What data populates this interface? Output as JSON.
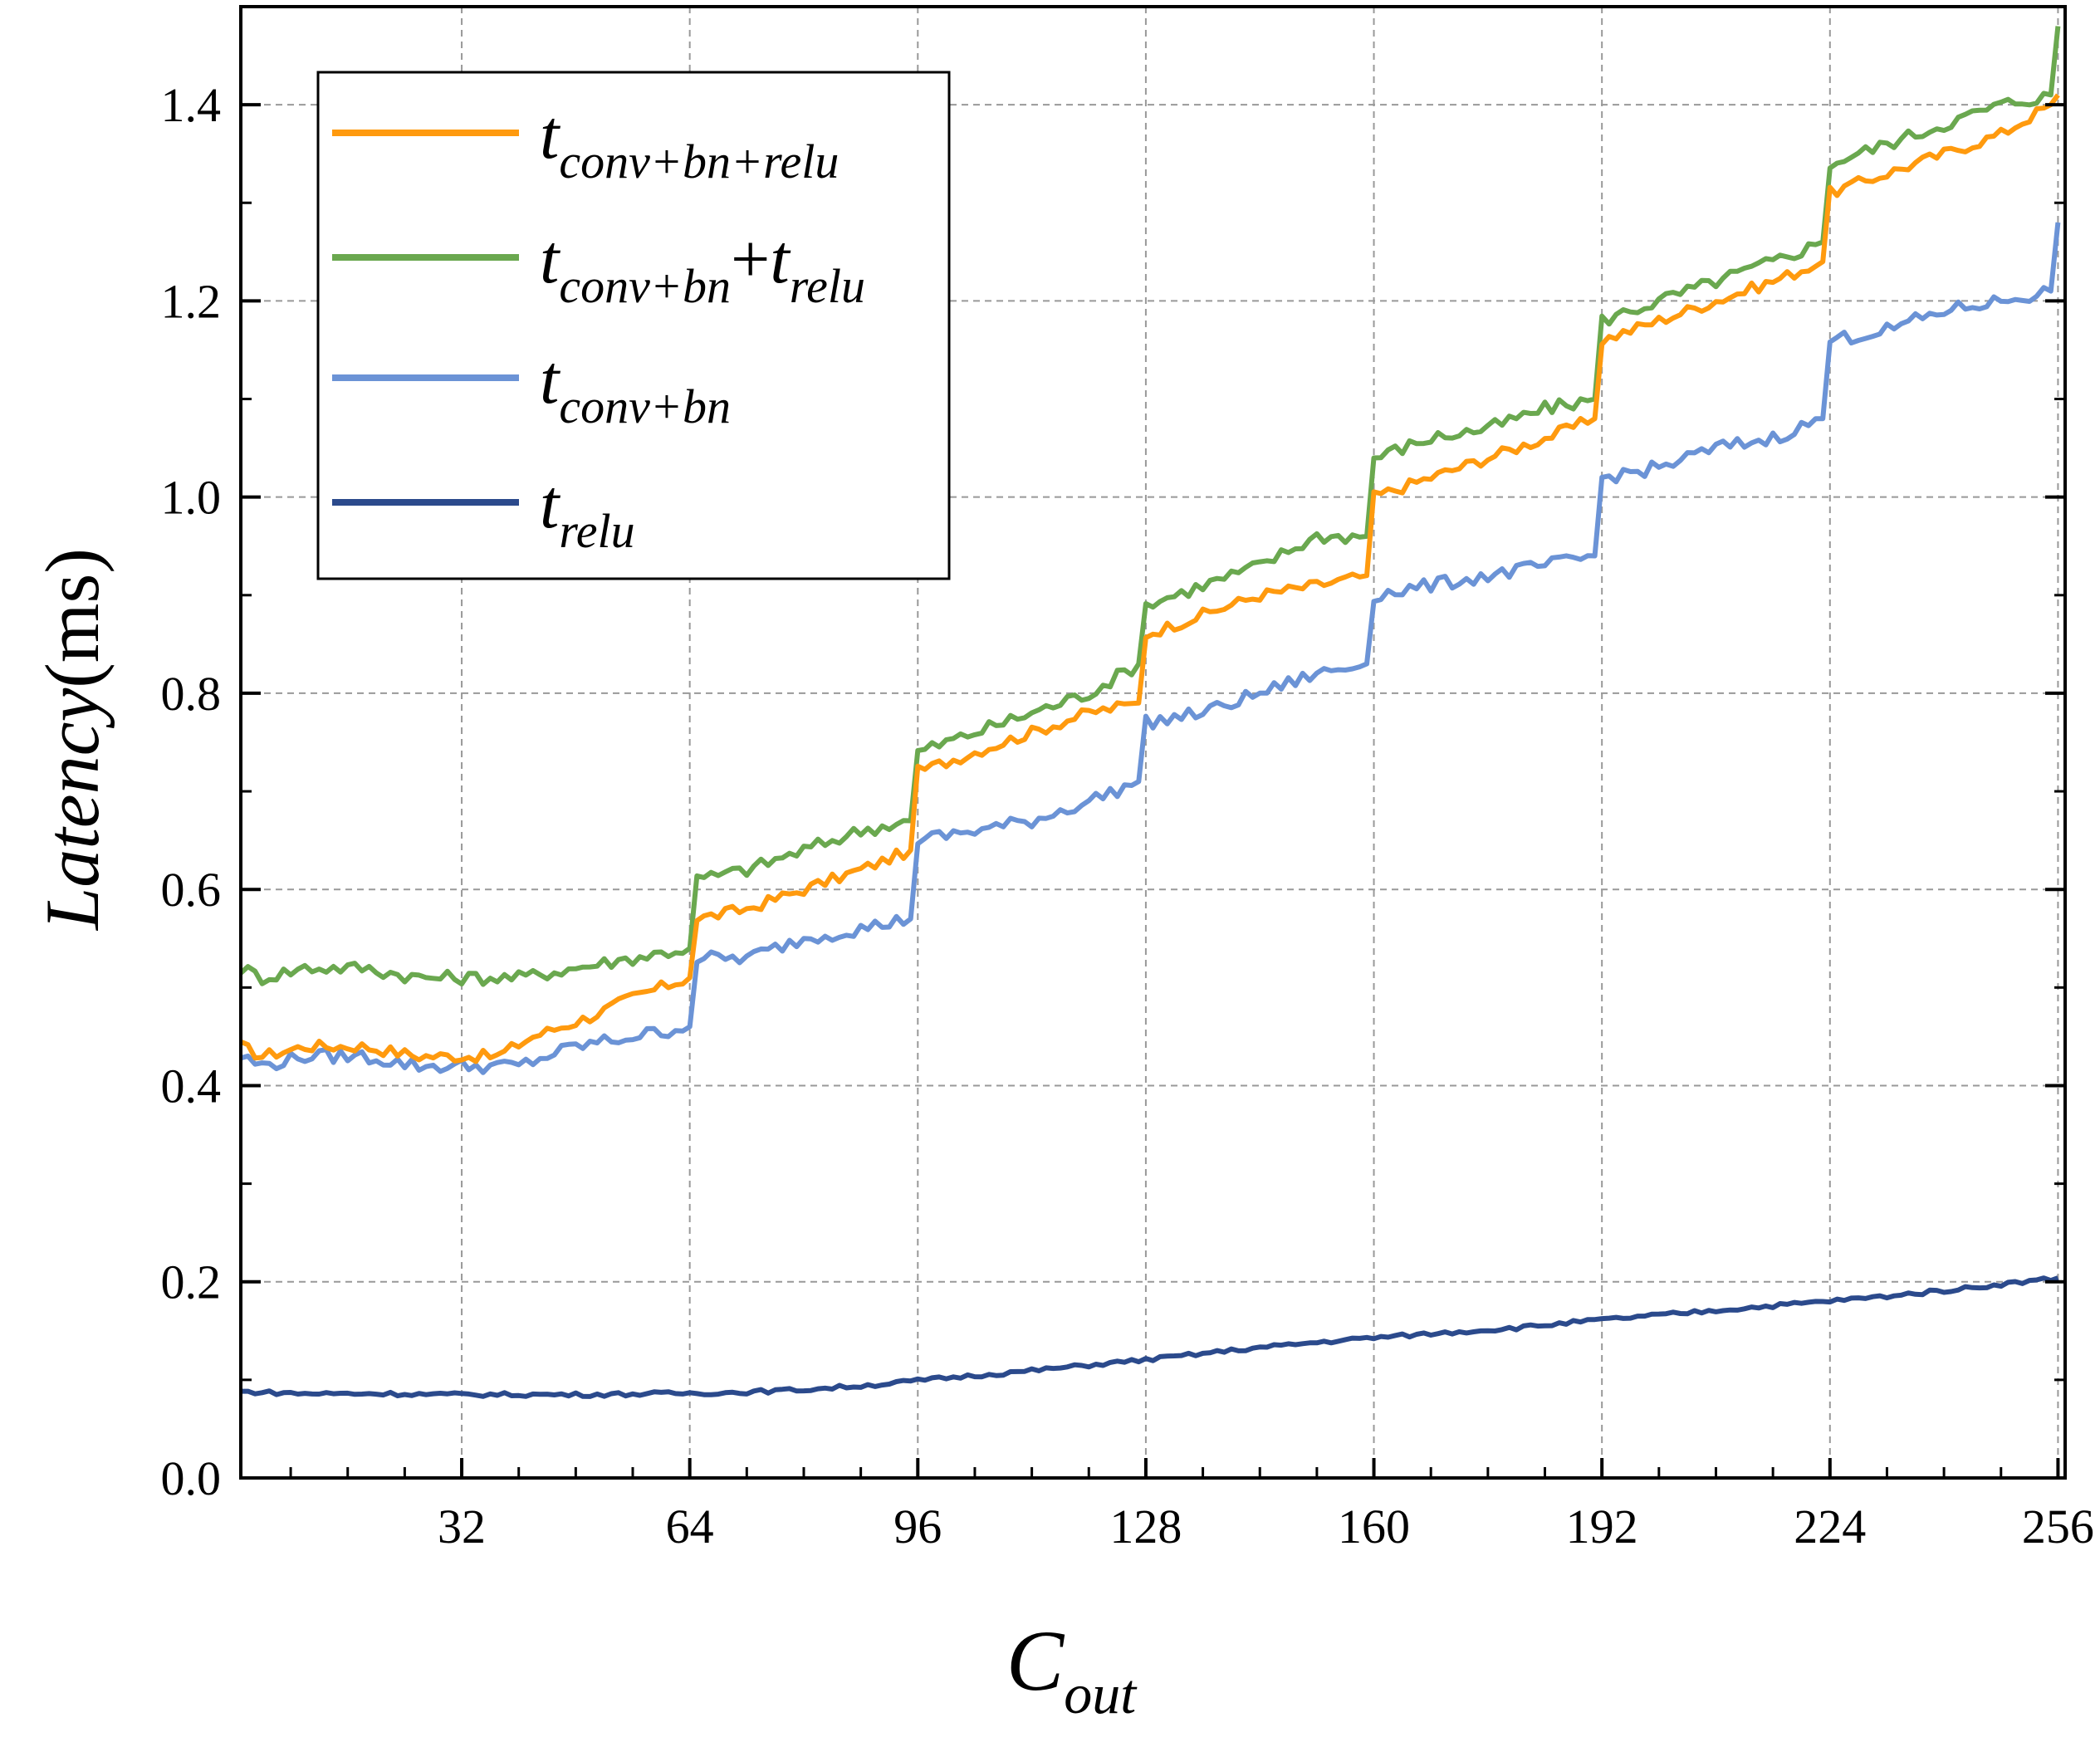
{
  "chart_data": {
    "type": "line",
    "xlabel": {
      "main": "C",
      "sub": "out"
    },
    "ylabel": {
      "main": "Latency",
      "unit": "(ms)"
    },
    "xlim": [
      1,
      257
    ],
    "ylim": [
      0.0,
      1.5
    ],
    "x_ticks": [
      32,
      64,
      96,
      128,
      160,
      192,
      224,
      256
    ],
    "x_tick_labels": [
      "32",
      "64",
      "96",
      "128",
      "160",
      "192",
      "224",
      "256"
    ],
    "y_ticks": [
      0.0,
      0.2,
      0.4,
      0.6,
      0.8,
      1.0,
      1.2,
      1.4
    ],
    "y_tick_labels": [
      "0.0",
      "0.2",
      "0.4",
      "0.6",
      "0.8",
      "1.0",
      "1.2",
      "1.4"
    ],
    "grid": true,
    "legend_position": "top-left",
    "series": [
      {
        "name": "t_conv+bn+relu",
        "label_parts": [
          {
            "t": "t",
            "s": "conv+bn+relu"
          }
        ],
        "color": "#ff9a0e",
        "points": [
          [
            1,
            0.44
          ],
          [
            4,
            0.43
          ],
          [
            10,
            0.44
          ],
          [
            18,
            0.44
          ],
          [
            26,
            0.43
          ],
          [
            32,
            0.43
          ],
          [
            37,
            0.43
          ],
          [
            42,
            0.45
          ],
          [
            50,
            0.47
          ],
          [
            56,
            0.49
          ],
          [
            64,
            0.51
          ],
          [
            65,
            0.57
          ],
          [
            72,
            0.58
          ],
          [
            80,
            0.6
          ],
          [
            88,
            0.62
          ],
          [
            95,
            0.64
          ],
          [
            96,
            0.72
          ],
          [
            104,
            0.74
          ],
          [
            112,
            0.76
          ],
          [
            120,
            0.78
          ],
          [
            127,
            0.79
          ],
          [
            128,
            0.86
          ],
          [
            136,
            0.88
          ],
          [
            144,
            0.9
          ],
          [
            152,
            0.91
          ],
          [
            159,
            0.92
          ],
          [
            160,
            1.0
          ],
          [
            168,
            1.02
          ],
          [
            176,
            1.04
          ],
          [
            184,
            1.06
          ],
          [
            191,
            1.08
          ],
          [
            192,
            1.16
          ],
          [
            200,
            1.18
          ],
          [
            208,
            1.2
          ],
          [
            216,
            1.22
          ],
          [
            223,
            1.24
          ],
          [
            224,
            1.31
          ],
          [
            232,
            1.33
          ],
          [
            240,
            1.35
          ],
          [
            248,
            1.37
          ],
          [
            255,
            1.4
          ],
          [
            256,
            1.41
          ]
        ]
      },
      {
        "name": "t_conv+bn + t_relu",
        "label_parts": [
          {
            "t": "t",
            "s": "conv+bn"
          },
          {
            "t": "+t",
            "s": "relu"
          }
        ],
        "color": "#6aa84f",
        "points": [
          [
            1,
            0.52
          ],
          [
            4,
            0.51
          ],
          [
            10,
            0.52
          ],
          [
            18,
            0.52
          ],
          [
            26,
            0.51
          ],
          [
            32,
            0.51
          ],
          [
            40,
            0.51
          ],
          [
            48,
            0.52
          ],
          [
            56,
            0.53
          ],
          [
            64,
            0.54
          ],
          [
            65,
            0.61
          ],
          [
            72,
            0.62
          ],
          [
            80,
            0.64
          ],
          [
            88,
            0.66
          ],
          [
            95,
            0.67
          ],
          [
            96,
            0.74
          ],
          [
            104,
            0.76
          ],
          [
            112,
            0.78
          ],
          [
            120,
            0.8
          ],
          [
            127,
            0.83
          ],
          [
            128,
            0.89
          ],
          [
            136,
            0.91
          ],
          [
            144,
            0.93
          ],
          [
            152,
            0.96
          ],
          [
            159,
            0.96
          ],
          [
            160,
            1.04
          ],
          [
            168,
            1.06
          ],
          [
            176,
            1.07
          ],
          [
            184,
            1.09
          ],
          [
            191,
            1.1
          ],
          [
            192,
            1.18
          ],
          [
            200,
            1.2
          ],
          [
            208,
            1.22
          ],
          [
            216,
            1.24
          ],
          [
            223,
            1.26
          ],
          [
            224,
            1.34
          ],
          [
            232,
            1.36
          ],
          [
            240,
            1.38
          ],
          [
            248,
            1.4
          ],
          [
            255,
            1.41
          ],
          [
            256,
            1.48
          ]
        ]
      },
      {
        "name": "t_conv+bn",
        "label_parts": [
          {
            "t": "t",
            "s": "conv+bn"
          }
        ],
        "color": "#6b93d6",
        "points": [
          [
            1,
            0.43
          ],
          [
            4,
            0.42
          ],
          [
            10,
            0.43
          ],
          [
            18,
            0.43
          ],
          [
            26,
            0.42
          ],
          [
            32,
            0.42
          ],
          [
            40,
            0.42
          ],
          [
            48,
            0.44
          ],
          [
            56,
            0.45
          ],
          [
            64,
            0.46
          ],
          [
            65,
            0.53
          ],
          [
            72,
            0.53
          ],
          [
            80,
            0.55
          ],
          [
            88,
            0.56
          ],
          [
            95,
            0.57
          ],
          [
            96,
            0.65
          ],
          [
            104,
            0.66
          ],
          [
            112,
            0.67
          ],
          [
            120,
            0.69
          ],
          [
            127,
            0.71
          ],
          [
            128,
            0.77
          ],
          [
            136,
            0.78
          ],
          [
            144,
            0.8
          ],
          [
            152,
            0.82
          ],
          [
            159,
            0.83
          ],
          [
            160,
            0.9
          ],
          [
            168,
            0.91
          ],
          [
            176,
            0.92
          ],
          [
            184,
            0.93
          ],
          [
            191,
            0.94
          ],
          [
            192,
            1.02
          ],
          [
            200,
            1.03
          ],
          [
            208,
            1.05
          ],
          [
            216,
            1.06
          ],
          [
            223,
            1.08
          ],
          [
            224,
            1.16
          ],
          [
            232,
            1.17
          ],
          [
            240,
            1.19
          ],
          [
            248,
            1.2
          ],
          [
            255,
            1.21
          ],
          [
            256,
            1.28
          ]
        ]
      },
      {
        "name": "t_relu",
        "label_parts": [
          {
            "t": "t",
            "s": "relu"
          }
        ],
        "color": "#2b4a8c",
        "points": [
          [
            1,
            0.088
          ],
          [
            10,
            0.086
          ],
          [
            20,
            0.086
          ],
          [
            30,
            0.085
          ],
          [
            40,
            0.085
          ],
          [
            50,
            0.085
          ],
          [
            60,
            0.086
          ],
          [
            70,
            0.087
          ],
          [
            80,
            0.09
          ],
          [
            90,
            0.095
          ],
          [
            100,
            0.102
          ],
          [
            110,
            0.108
          ],
          [
            120,
            0.115
          ],
          [
            130,
            0.122
          ],
          [
            140,
            0.13
          ],
          [
            150,
            0.137
          ],
          [
            160,
            0.143
          ],
          [
            170,
            0.148
          ],
          [
            180,
            0.153
          ],
          [
            190,
            0.16
          ],
          [
            200,
            0.166
          ],
          [
            210,
            0.172
          ],
          [
            220,
            0.178
          ],
          [
            230,
            0.184
          ],
          [
            240,
            0.191
          ],
          [
            250,
            0.199
          ],
          [
            256,
            0.204
          ]
        ]
      }
    ]
  }
}
